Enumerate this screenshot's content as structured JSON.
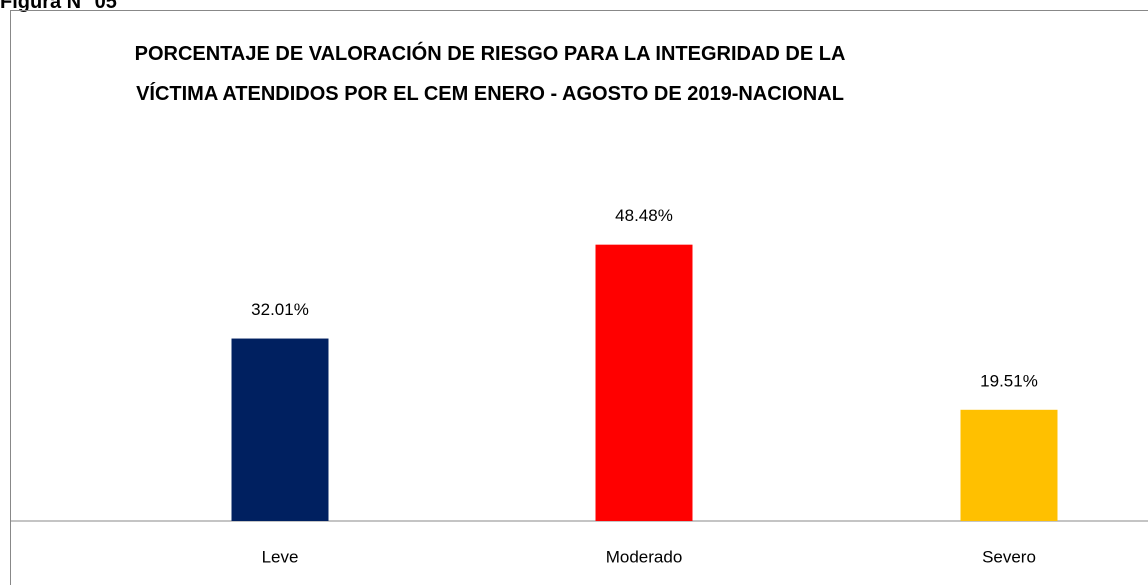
{
  "chart_data": {
    "type": "bar",
    "caption": "Figura N° 05",
    "title": "PORCENTAJE DE VALORACIÓN DE RIESGO PARA LA INTEGRIDAD DE LA VÍCTIMA ATENDIDOS POR EL CEM ENERO - AGOSTO DE 2019-NACIONAL",
    "categories": [
      "Leve",
      "Moderado",
      "Severo"
    ],
    "values": [
      32.01,
      48.48,
      19.51
    ],
    "value_labels": [
      "32.01%",
      "48.48%",
      "19.51%"
    ],
    "colors": [
      "#002060",
      "#ff0000",
      "#ffc000"
    ]
  }
}
